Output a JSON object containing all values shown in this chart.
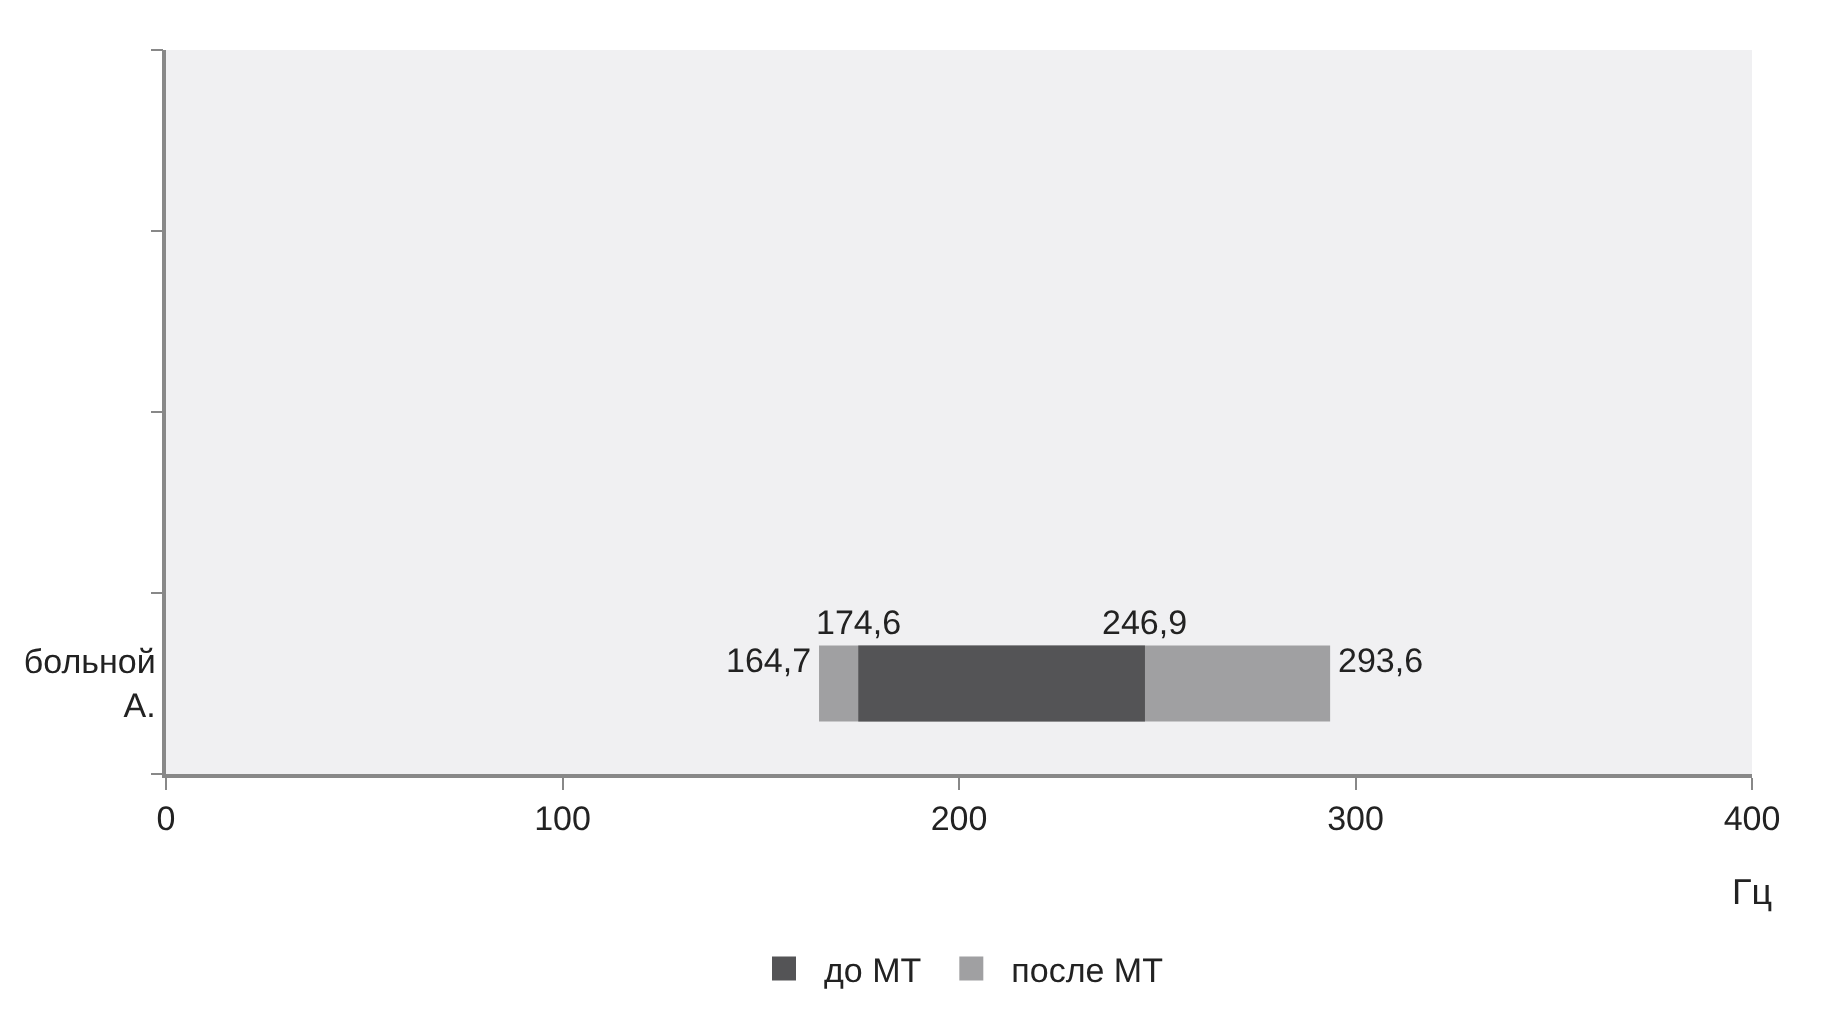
{
  "chart_data": {
    "type": "bar",
    "orientation": "horizontal",
    "categories": [
      null,
      null,
      null,
      "больной А."
    ],
    "xlabel": "Гц",
    "xlim": [
      0,
      400
    ],
    "xticks": [
      0,
      100,
      200,
      300,
      400
    ],
    "grid": false,
    "legend": "bottom",
    "series": [
      {
        "name": "после МТ",
        "color": "#a0a0a2",
        "values": [
          null,
          null,
          null,
          128.9
        ],
        "base": [
          null,
          null,
          null,
          164.7
        ]
      },
      {
        "name": "до МТ",
        "color": "#545456",
        "values": [
          null,
          null,
          null,
          72.3
        ],
        "base": [
          null,
          null,
          null,
          174.6
        ]
      }
    ],
    "annotations": [
      {
        "text": "164,7",
        "x": 164.7,
        "y": "больной А."
      },
      {
        "text": "174,6",
        "x": 174.6,
        "y": "больной А."
      },
      {
        "text": "246,9",
        "x": 246.9,
        "y": "больной А."
      },
      {
        "text": "293,6",
        "x": 293.6,
        "y": "больной А."
      }
    ]
  }
}
